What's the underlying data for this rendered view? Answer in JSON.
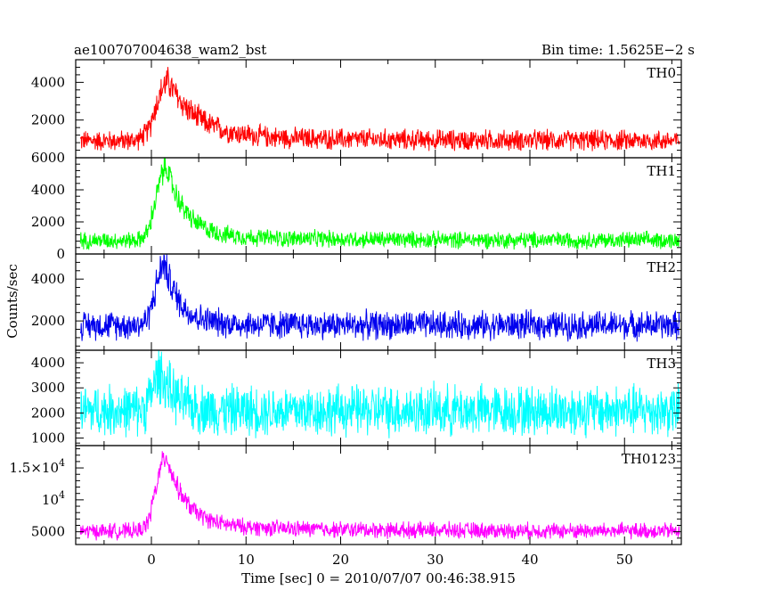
{
  "header": {
    "left": "ae100707004638_wam2_bst",
    "right": "Bin time: 1.5625E−2 s"
  },
  "axes": {
    "ylabel": "Counts/sec",
    "xlabel": "Time [sec] 0 = 2010/07/07 00:46:38.915",
    "xticks": [
      "0",
      "10",
      "20",
      "30",
      "40",
      "50"
    ]
  },
  "chart_data": {
    "type": "line",
    "x_range": [
      -8,
      56
    ],
    "x_ticks": [
      0,
      10,
      20,
      30,
      40,
      50
    ],
    "panels": [
      {
        "name": "TH0",
        "color": "#ff0000",
        "ylim": [
          0,
          5200
        ],
        "yticks": [
          2000,
          4000
        ],
        "ytick_labels": [
          "2000",
          "4000"
        ],
        "baseline": 900,
        "noise": 650,
        "peak": 2900,
        "peak_t": 1.8,
        "rise": 1.2,
        "decay": 3.0,
        "tail": 250,
        "tail_decay": 18
      },
      {
        "name": "TH1",
        "color": "#00ff00",
        "ylim": [
          0,
          6000
        ],
        "yticks": [
          0,
          2000,
          4000,
          6000
        ],
        "ytick_labels": [
          "0",
          "2000",
          "4000",
          "6000"
        ],
        "baseline": 850,
        "noise": 620,
        "peak": 4300,
        "peak_t": 1.6,
        "rise": 1.0,
        "decay": 2.0,
        "tail": 300,
        "tail_decay": 15
      },
      {
        "name": "TH2",
        "color": "#0000ee",
        "ylim": [
          600,
          5200
        ],
        "yticks": [
          2000,
          4000
        ],
        "ytick_labels": [
          "2000",
          "4000"
        ],
        "baseline": 1800,
        "noise": 800,
        "peak": 2800,
        "peak_t": 1.4,
        "rise": 0.9,
        "decay": 1.6,
        "tail": 150,
        "tail_decay": 6
      },
      {
        "name": "TH3",
        "color": "#00ffff",
        "ylim": [
          700,
          4500
        ],
        "yticks": [
          1000,
          2000,
          3000,
          4000
        ],
        "ytick_labels": [
          "1000",
          "2000",
          "3000",
          "4000"
        ],
        "baseline": 2100,
        "noise": 1200,
        "peak": 1500,
        "peak_t": 1.0,
        "rise": 0.8,
        "decay": 1.5,
        "tail": 0,
        "tail_decay": 5
      },
      {
        "name": "TH0123",
        "color": "#ff00ff",
        "ylim": [
          3000,
          18500
        ],
        "yticks": [
          5000,
          10000,
          15000
        ],
        "ytick_labels": [
          "5000",
          "10^4",
          "1.5×10^4"
        ],
        "baseline": 5100,
        "noise": 1500,
        "peak": 10800,
        "peak_t": 1.6,
        "rise": 1.0,
        "decay": 2.0,
        "tail": 1000,
        "tail_decay": 15
      }
    ]
  }
}
